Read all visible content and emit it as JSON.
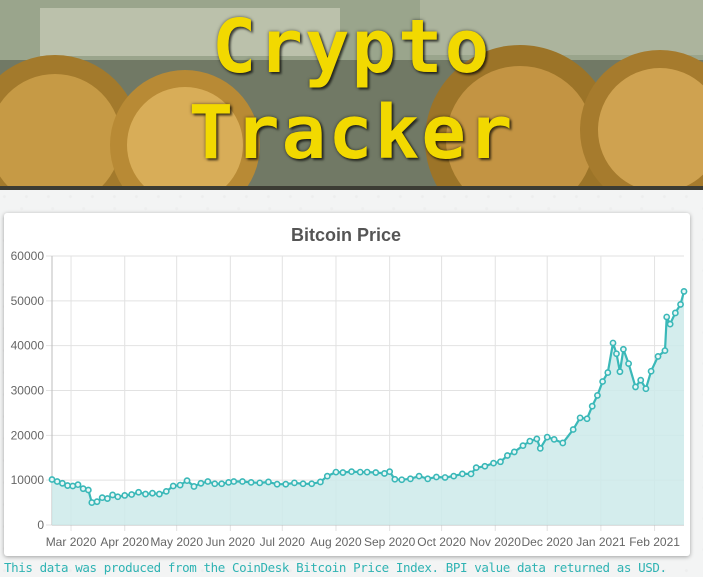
{
  "header": {
    "title_line1": "Crypto",
    "title_line2": "Tracker"
  },
  "footnote": "This data was produced from the CoinDesk Bitcoin Price Index. BPI value data returned as USD.",
  "colors": {
    "title": "#f2d900",
    "series_line": "#3ab8b8",
    "series_fill": "#cdeaea",
    "footnote": "#2fb3b3"
  },
  "chart_data": {
    "type": "area",
    "title": "Bitcoin Price",
    "xlabel": "",
    "ylabel": "",
    "ylim": [
      0,
      60000
    ],
    "yticks": [
      0,
      10000,
      20000,
      30000,
      40000,
      50000,
      60000
    ],
    "grid": true,
    "legend": "none",
    "x_range": [
      "2020-02-19",
      "2021-02-18"
    ],
    "x_ticks": [
      {
        "date": "2020-03-01",
        "label": "Mar 2020"
      },
      {
        "date": "2020-04-01",
        "label": "Apr 2020"
      },
      {
        "date": "2020-05-01",
        "label": "May 2020"
      },
      {
        "date": "2020-06-01",
        "label": "Jun 2020"
      },
      {
        "date": "2020-07-01",
        "label": "Jul 2020"
      },
      {
        "date": "2020-08-01",
        "label": "Aug 2020"
      },
      {
        "date": "2020-09-01",
        "label": "Sep 2020"
      },
      {
        "date": "2020-10-01",
        "label": "Oct 2020"
      },
      {
        "date": "2020-11-01",
        "label": "Nov 2020"
      },
      {
        "date": "2020-12-01",
        "label": "Dec 2020"
      },
      {
        "date": "2021-01-01",
        "label": "Jan 2021"
      },
      {
        "date": "2021-02-01",
        "label": "Feb 2021"
      }
    ],
    "series": [
      {
        "points": [
          [
            "2020-02-19",
            10150
          ],
          [
            "2020-02-22",
            9700
          ],
          [
            "2020-02-25",
            9300
          ],
          [
            "2020-02-28",
            8800
          ],
          [
            "2020-03-02",
            8700
          ],
          [
            "2020-03-05",
            9000
          ],
          [
            "2020-03-08",
            8100
          ],
          [
            "2020-03-11",
            7800
          ],
          [
            "2020-03-13",
            5000
          ],
          [
            "2020-03-16",
            5200
          ],
          [
            "2020-03-19",
            6100
          ],
          [
            "2020-03-22",
            5900
          ],
          [
            "2020-03-25",
            6700
          ],
          [
            "2020-03-28",
            6300
          ],
          [
            "2020-04-01",
            6600
          ],
          [
            "2020-04-05",
            6800
          ],
          [
            "2020-04-09",
            7300
          ],
          [
            "2020-04-13",
            6900
          ],
          [
            "2020-04-17",
            7100
          ],
          [
            "2020-04-21",
            6900
          ],
          [
            "2020-04-25",
            7500
          ],
          [
            "2020-04-29",
            8700
          ],
          [
            "2020-05-03",
            8900
          ],
          [
            "2020-05-07",
            9900
          ],
          [
            "2020-05-11",
            8600
          ],
          [
            "2020-05-15",
            9300
          ],
          [
            "2020-05-19",
            9700
          ],
          [
            "2020-05-23",
            9200
          ],
          [
            "2020-05-27",
            9200
          ],
          [
            "2020-05-31",
            9500
          ],
          [
            "2020-06-03",
            9700
          ],
          [
            "2020-06-08",
            9700
          ],
          [
            "2020-06-13",
            9500
          ],
          [
            "2020-06-18",
            9400
          ],
          [
            "2020-06-23",
            9600
          ],
          [
            "2020-06-28",
            9100
          ],
          [
            "2020-07-03",
            9100
          ],
          [
            "2020-07-08",
            9400
          ],
          [
            "2020-07-13",
            9200
          ],
          [
            "2020-07-18",
            9200
          ],
          [
            "2020-07-23",
            9600
          ],
          [
            "2020-07-27",
            10900
          ],
          [
            "2020-08-01",
            11800
          ],
          [
            "2020-08-05",
            11700
          ],
          [
            "2020-08-10",
            11900
          ],
          [
            "2020-08-15",
            11800
          ],
          [
            "2020-08-19",
            11800
          ],
          [
            "2020-08-24",
            11700
          ],
          [
            "2020-08-29",
            11500
          ],
          [
            "2020-09-01",
            11900
          ],
          [
            "2020-09-04",
            10200
          ],
          [
            "2020-09-08",
            10100
          ],
          [
            "2020-09-13",
            10300
          ],
          [
            "2020-09-18",
            10900
          ],
          [
            "2020-09-23",
            10300
          ],
          [
            "2020-09-28",
            10700
          ],
          [
            "2020-10-03",
            10600
          ],
          [
            "2020-10-08",
            10900
          ],
          [
            "2020-10-13",
            11400
          ],
          [
            "2020-10-18",
            11400
          ],
          [
            "2020-10-21",
            12800
          ],
          [
            "2020-10-26",
            13100
          ],
          [
            "2020-10-31",
            13800
          ],
          [
            "2020-11-04",
            14100
          ],
          [
            "2020-11-08",
            15500
          ],
          [
            "2020-11-12",
            16300
          ],
          [
            "2020-11-17",
            17700
          ],
          [
            "2020-11-21",
            18700
          ],
          [
            "2020-11-25",
            19200
          ],
          [
            "2020-11-27",
            17100
          ],
          [
            "2020-12-01",
            19600
          ],
          [
            "2020-12-05",
            19100
          ],
          [
            "2020-12-10",
            18300
          ],
          [
            "2020-12-16",
            21300
          ],
          [
            "2020-12-20",
            23900
          ],
          [
            "2020-12-24",
            23700
          ],
          [
            "2020-12-27",
            26500
          ],
          [
            "2020-12-30",
            28900
          ],
          [
            "2021-01-02",
            32000
          ],
          [
            "2021-01-05",
            34000
          ],
          [
            "2021-01-08",
            40600
          ],
          [
            "2021-01-10",
            38200
          ],
          [
            "2021-01-12",
            34200
          ],
          [
            "2021-01-14",
            39200
          ],
          [
            "2021-01-17",
            36000
          ],
          [
            "2021-01-21",
            30800
          ],
          [
            "2021-01-24",
            32300
          ],
          [
            "2021-01-27",
            30400
          ],
          [
            "2021-01-30",
            34300
          ],
          [
            "2021-02-03",
            37600
          ],
          [
            "2021-02-07",
            38900
          ],
          [
            "2021-02-08",
            46400
          ],
          [
            "2021-02-10",
            44800
          ],
          [
            "2021-02-13",
            47300
          ],
          [
            "2021-02-16",
            49200
          ],
          [
            "2021-02-18",
            52100
          ]
        ]
      }
    ]
  }
}
